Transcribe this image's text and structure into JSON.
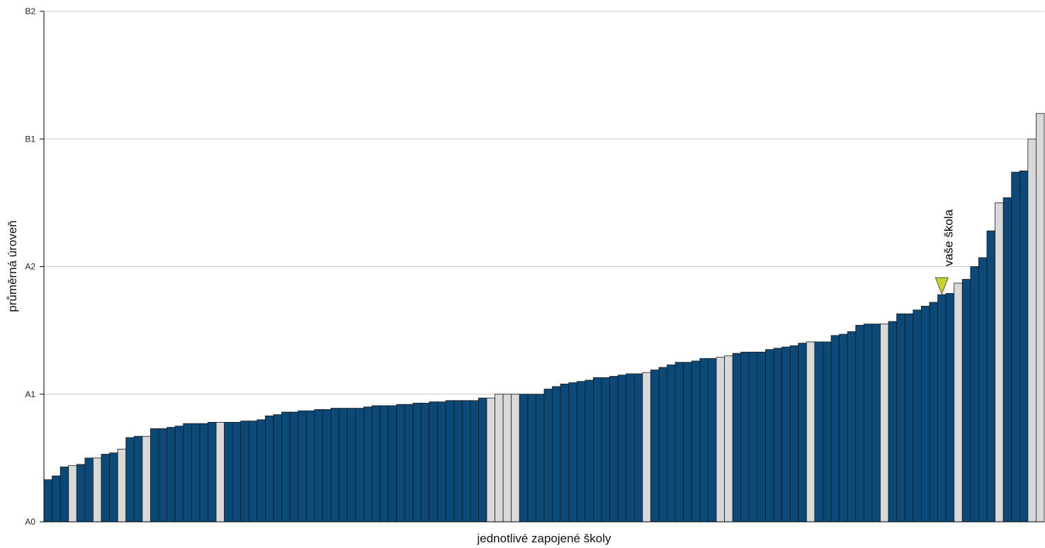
{
  "chart_data": {
    "type": "bar",
    "xlabel": "jednotlivé zapojené školy",
    "ylabel": "průměrná úroveň",
    "y_ticks": [
      "A0",
      "A1",
      "A2",
      "B1",
      "B2"
    ],
    "ylim": [
      0,
      4
    ],
    "grid": "horizontal",
    "colors": {
      "school": "#0b4a78",
      "other": "#d9d9d9",
      "marker": "#c8d227",
      "grid": "#c8c8c8"
    },
    "annotation": {
      "text": "vaše škola",
      "school_index": 109
    },
    "values": [
      0.33,
      0.36,
      0.43,
      0.44,
      0.45,
      0.5,
      0.5,
      0.53,
      0.54,
      0.57,
      0.66,
      0.67,
      0.67,
      0.73,
      0.73,
      0.74,
      0.75,
      0.77,
      0.77,
      0.77,
      0.78,
      0.78,
      0.78,
      0.78,
      0.79,
      0.79,
      0.8,
      0.83,
      0.84,
      0.86,
      0.86,
      0.87,
      0.87,
      0.88,
      0.88,
      0.89,
      0.89,
      0.89,
      0.89,
      0.9,
      0.91,
      0.91,
      0.91,
      0.92,
      0.92,
      0.93,
      0.93,
      0.94,
      0.94,
      0.95,
      0.95,
      0.95,
      0.95,
      0.97,
      0.97,
      1.0,
      1.0,
      1.0,
      1.0,
      1.0,
      1.0,
      1.04,
      1.06,
      1.08,
      1.09,
      1.1,
      1.11,
      1.13,
      1.13,
      1.14,
      1.15,
      1.16,
      1.16,
      1.17,
      1.19,
      1.21,
      1.23,
      1.25,
      1.25,
      1.26,
      1.28,
      1.28,
      1.29,
      1.3,
      1.32,
      1.33,
      1.33,
      1.33,
      1.35,
      1.36,
      1.37,
      1.38,
      1.4,
      1.41,
      1.41,
      1.41,
      1.46,
      1.47,
      1.49,
      1.54,
      1.55,
      1.55,
      1.55,
      1.57,
      1.63,
      1.63,
      1.66,
      1.69,
      1.72,
      1.78,
      1.79,
      1.87,
      1.9,
      2.0,
      2.07,
      2.28,
      2.5,
      2.54,
      2.74,
      2.75,
      3.0,
      3.2
    ],
    "highlighted": [
      3,
      6,
      9,
      12,
      21,
      54,
      55,
      56,
      57,
      73,
      82,
      83,
      93,
      102,
      111,
      116,
      120,
      121
    ]
  }
}
